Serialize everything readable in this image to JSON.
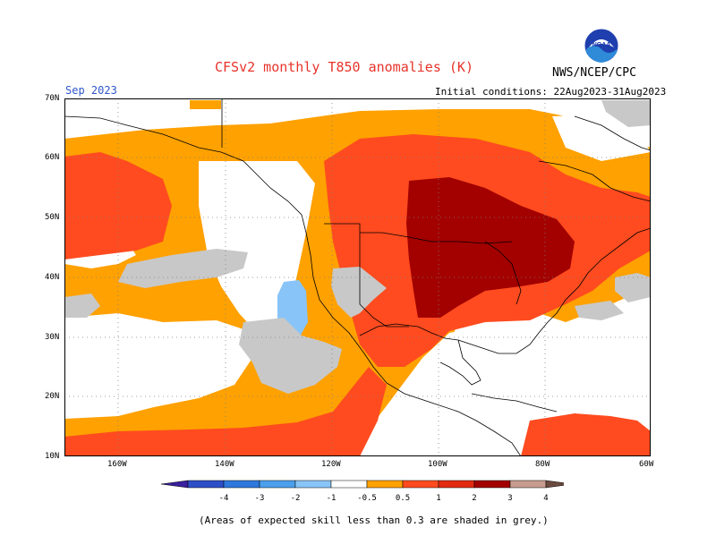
{
  "header": {
    "title": "CFSv2 monthly T850 anomalies (K)",
    "month": "Sep 2023",
    "initial_conditions": "Initial conditions: 22Aug2023-31Aug2023",
    "agency": "NWS/NCEP/CPC",
    "logo_text": "NOAA"
  },
  "axes": {
    "lat_labels": [
      "70N",
      "60N",
      "50N",
      "40N",
      "30N",
      "20N",
      "10N"
    ],
    "lon_labels": [
      "160W",
      "140W",
      "120W",
      "100W",
      "80W",
      "60W"
    ]
  },
  "legend": {
    "labels": [
      "-4",
      "-3",
      "-2",
      "-1",
      "-0.5",
      "0.5",
      "1",
      "2",
      "3",
      "4"
    ],
    "colors": [
      "#3a1f9e",
      "#2d4fc8",
      "#2f78dd",
      "#4ba0ee",
      "#88c4f8",
      "#ffffff",
      "#ffa100",
      "#ff4b1f",
      "#e22b10",
      "#a30000",
      "#c79c8e",
      "#6b4a3f"
    ]
  },
  "footer": {
    "note": "(Areas of expected skill less than 0.3 are shaded in grey.)"
  },
  "colors": {
    "skill_mask_grey": "#c8c8c8",
    "anomaly_05_1": "#ffa100",
    "anomaly_1_2": "#ff4b1f",
    "anomaly_2_3": "#a30000",
    "anomaly_neg_05_1": "#88c4f8"
  }
}
